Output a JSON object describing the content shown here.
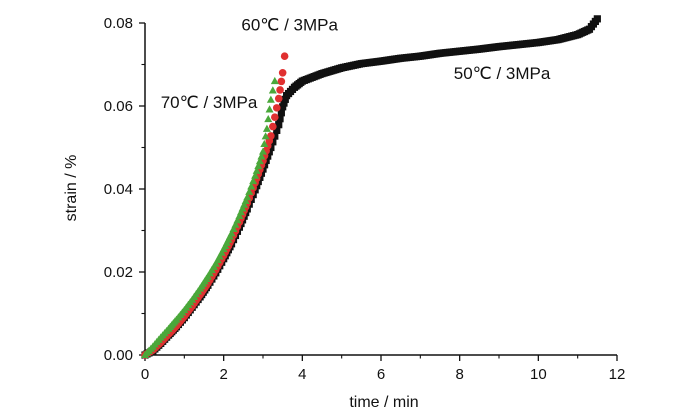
{
  "chart_data": {
    "type": "scatter",
    "title": "",
    "xlabel": "time / min",
    "ylabel": "strain / %",
    "xlim": [
      0,
      12
    ],
    "ylim": [
      0,
      0.08
    ],
    "x_ticks": [
      "0",
      "2",
      "4",
      "6",
      "8",
      "10",
      "12"
    ],
    "y_ticks": [
      "0.00",
      "0.02",
      "0.04",
      "0.06",
      "0.08"
    ],
    "grid": false,
    "legend": "none",
    "series": [
      {
        "name": "50℃ / 3MPa",
        "color": "#111111",
        "marker": "square",
        "x": [
          0,
          0.2,
          0.4,
          0.6,
          0.8,
          1.0,
          1.2,
          1.4,
          1.6,
          1.8,
          2.0,
          2.2,
          2.4,
          2.6,
          2.8,
          3.0,
          3.2,
          3.4,
          3.5,
          3.6,
          3.8,
          4.0,
          4.5,
          5.0,
          5.5,
          6.0,
          6.5,
          7.0,
          7.5,
          8.0,
          8.5,
          9.0,
          9.5,
          10.0,
          10.5,
          11.0,
          11.3,
          11.5
        ],
        "y": [
          0,
          0.001,
          0.0028,
          0.0048,
          0.0068,
          0.009,
          0.0115,
          0.014,
          0.0168,
          0.0198,
          0.0232,
          0.0268,
          0.0308,
          0.0352,
          0.0398,
          0.0448,
          0.05,
          0.0555,
          0.0598,
          0.0625,
          0.0645,
          0.066,
          0.0678,
          0.0692,
          0.0702,
          0.0708,
          0.0715,
          0.072,
          0.0727,
          0.0732,
          0.0737,
          0.0743,
          0.0748,
          0.0753,
          0.076,
          0.0772,
          0.0785,
          0.081
        ]
      },
      {
        "name": "60℃ / 3MPa",
        "color": "#e03030",
        "marker": "circle",
        "x": [
          0,
          0.2,
          0.4,
          0.6,
          0.8,
          1.0,
          1.2,
          1.4,
          1.6,
          1.8,
          2.0,
          2.2,
          2.4,
          2.6,
          2.8,
          3.0,
          3.2,
          3.4,
          3.5,
          3.55
        ],
        "y": [
          0,
          0.0012,
          0.003,
          0.005,
          0.007,
          0.0093,
          0.0118,
          0.0145,
          0.0173,
          0.0205,
          0.024,
          0.0278,
          0.032,
          0.0366,
          0.0415,
          0.0468,
          0.0528,
          0.0618,
          0.068,
          0.072
        ]
      },
      {
        "name": "70℃ / 3MPa",
        "color": "#4aa83a",
        "marker": "triangle",
        "x": [
          0,
          0.2,
          0.4,
          0.6,
          0.8,
          1.0,
          1.2,
          1.4,
          1.6,
          1.8,
          2.0,
          2.2,
          2.4,
          2.6,
          2.8,
          3.0,
          3.1,
          3.2,
          3.3
        ],
        "y": [
          0,
          0.002,
          0.0042,
          0.0063,
          0.0085,
          0.0108,
          0.0133,
          0.016,
          0.0189,
          0.022,
          0.0255,
          0.0293,
          0.0335,
          0.038,
          0.0432,
          0.049,
          0.0545,
          0.0615,
          0.066
        ]
      }
    ],
    "annotations": [
      {
        "text": "60℃ / 3MPa",
        "x": 2.45,
        "y": 0.0782
      },
      {
        "text": "70℃ / 3MPa",
        "x": 0.4,
        "y": 0.0595
      },
      {
        "text": "50℃ / 3MPa",
        "x": 7.85,
        "y": 0.0665
      }
    ]
  }
}
